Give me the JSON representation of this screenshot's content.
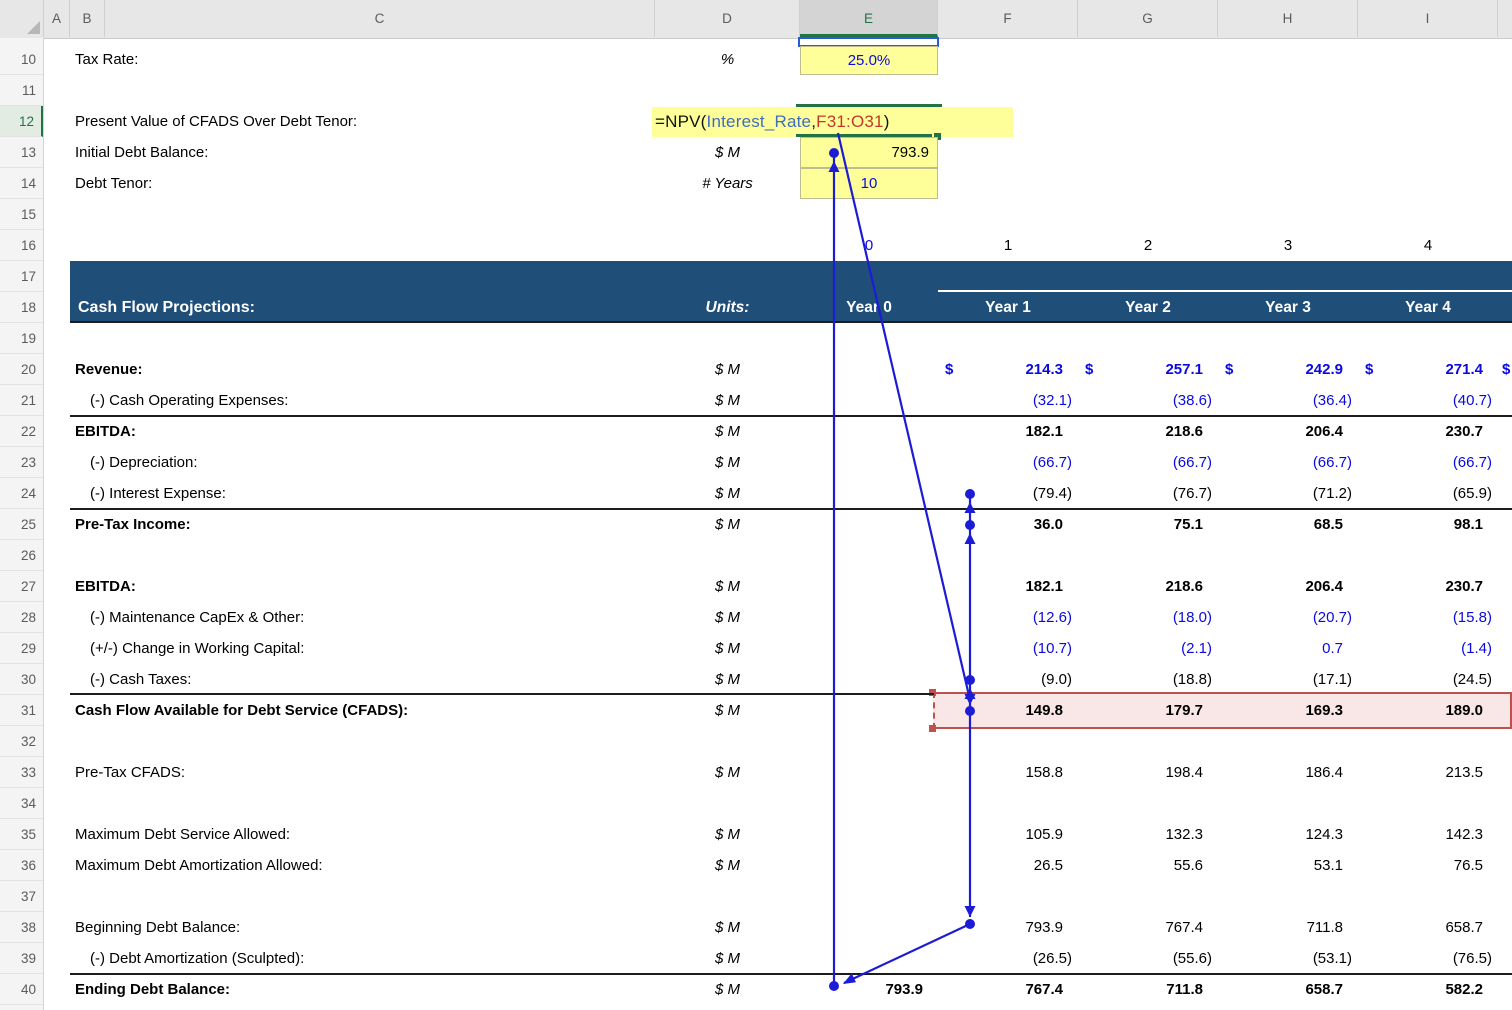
{
  "colors": {
    "band_blue": "#1F4E79",
    "input_blue": "#0A0ADF",
    "ref_blue": "#3F6DBF",
    "ref_red": "#C0392B",
    "trace_blue": "#1C1CD6",
    "marquee_red": "#C0504D",
    "marquee_fill": "#F9E7E7",
    "cell_yellow": "#FFFF99",
    "selection_green": "#217346"
  },
  "column_headers": [
    "A",
    "B",
    "C",
    "D",
    "E",
    "F",
    "G",
    "H",
    "I"
  ],
  "active_column": "E",
  "active_row": 12,
  "row_numbers": [
    "10",
    "11",
    "12",
    "13",
    "14",
    "15",
    "16",
    "17",
    "18",
    "19",
    "20",
    "21",
    "22",
    "23",
    "24",
    "25",
    "26",
    "27",
    "28",
    "29",
    "30",
    "31",
    "32",
    "33",
    "34",
    "35",
    "36",
    "37",
    "38",
    "39",
    "40"
  ],
  "dollar_prefix": "$",
  "top_section": {
    "rows": [
      {
        "row": 10,
        "label": "Tax Rate:",
        "unit": "%",
        "value": "25.0%",
        "value_style": "input-center"
      },
      {
        "row": 12,
        "label": "Present Value of CFADS Over Debt Tenor:",
        "formula": [
          {
            "t": "=NPV(",
            "c": "formula_black"
          },
          {
            "t": "Interest_Rate",
            "c": "ref_blue"
          },
          {
            "t": ",",
            "c": "formula_black"
          },
          {
            "t": "F31:O31",
            "c": "ref_red"
          },
          {
            "t": ")",
            "c": "formula_black"
          }
        ]
      },
      {
        "row": 13,
        "label": "Initial Debt Balance:",
        "unit": "$ M",
        "value": "793.9",
        "value_style": "calc-right"
      },
      {
        "row": 14,
        "label": "Debt Tenor:",
        "unit": "# Years",
        "value": "10",
        "value_style": "input-center"
      }
    ]
  },
  "period_row": {
    "row": 16,
    "values": [
      "0",
      "1",
      "2",
      "3",
      "4"
    ],
    "styles": [
      "blue",
      "black",
      "black",
      "black",
      "black"
    ]
  },
  "table_header": {
    "title": "Cash Flow Projections:",
    "units_label": "Units:",
    "years": [
      "Year 0",
      "Year 1",
      "Year 2",
      "Year 3",
      "Year 4"
    ]
  },
  "table_rows": [
    {
      "row": 20,
      "label": "Revenue:",
      "bold": true,
      "unit": "$ M",
      "color": "blue",
      "vbold": true,
      "dollar": true,
      "values": [
        "",
        "214.3",
        "257.1",
        "242.9",
        "271.4"
      ]
    },
    {
      "row": 21,
      "label": "(-) Cash Operating Expenses:",
      "indent": true,
      "unit": "$ M",
      "color": "blue",
      "values": [
        "",
        "(32.1)",
        "(38.6)",
        "(36.4)",
        "(40.7)"
      ]
    },
    {
      "row": 22,
      "label": "EBITDA:",
      "bold": true,
      "unit": "$ M",
      "color": "black",
      "vbold": true,
      "topline": true,
      "values": [
        "",
        "182.1",
        "218.6",
        "206.4",
        "230.7"
      ]
    },
    {
      "row": 23,
      "label": "(-) Depreciation:",
      "indent": true,
      "unit": "$ M",
      "color": "blue",
      "values": [
        "",
        "(66.7)",
        "(66.7)",
        "(66.7)",
        "(66.7)"
      ]
    },
    {
      "row": 24,
      "label": "(-) Interest Expense:",
      "indent": true,
      "unit": "$ M",
      "color": "black",
      "values": [
        "",
        "(79.4)",
        "(76.7)",
        "(71.2)",
        "(65.9)"
      ]
    },
    {
      "row": 25,
      "label": "Pre-Tax Income:",
      "bold": true,
      "unit": "$ M",
      "color": "black",
      "vbold": true,
      "topline": true,
      "values": [
        "",
        "36.0",
        "75.1",
        "68.5",
        "98.1"
      ]
    },
    {
      "row": 27,
      "label": "EBITDA:",
      "bold": true,
      "unit": "$ M",
      "color": "black",
      "vbold": true,
      "values": [
        "",
        "182.1",
        "218.6",
        "206.4",
        "230.7"
      ]
    },
    {
      "row": 28,
      "label": "(-) Maintenance CapEx & Other:",
      "indent": true,
      "unit": "$ M",
      "color": "blue",
      "values": [
        "",
        "(12.6)",
        "(18.0)",
        "(20.7)",
        "(15.8)"
      ]
    },
    {
      "row": 29,
      "label": "(+/-) Change in Working Capital:",
      "indent": true,
      "unit": "$ M",
      "color": "blue",
      "values": [
        "",
        "(10.7)",
        "(2.1)",
        "0.7",
        "(1.4)"
      ]
    },
    {
      "row": 30,
      "label": "(-) Cash Taxes:",
      "indent": true,
      "unit": "$ M",
      "color": "black",
      "values": [
        "",
        "(9.0)",
        "(18.8)",
        "(17.1)",
        "(24.5)"
      ]
    },
    {
      "row": 31,
      "label": "Cash Flow Available for Debt Service (CFADS):",
      "bold": true,
      "unit": "$ M",
      "color": "black",
      "vbold": true,
      "topline": true,
      "topline_short": true,
      "marquee": true,
      "values": [
        "",
        "149.8",
        "179.7",
        "169.3",
        "189.0"
      ]
    },
    {
      "row": 33,
      "label": "Pre-Tax CFADS:",
      "unit": "$ M",
      "color": "black",
      "values": [
        "",
        "158.8",
        "198.4",
        "186.4",
        "213.5"
      ]
    },
    {
      "row": 35,
      "label": "Maximum Debt Service Allowed:",
      "unit": "$ M",
      "color": "black",
      "values": [
        "",
        "105.9",
        "132.3",
        "124.3",
        "142.3"
      ]
    },
    {
      "row": 36,
      "label": "Maximum Debt Amortization Allowed:",
      "unit": "$ M",
      "color": "black",
      "values": [
        "",
        "26.5",
        "55.6",
        "53.1",
        "76.5"
      ]
    },
    {
      "row": 38,
      "label": "Beginning Debt Balance:",
      "unit": "$ M",
      "color": "black",
      "values": [
        "",
        "793.9",
        "767.4",
        "711.8",
        "658.7"
      ]
    },
    {
      "row": 39,
      "label": "(-) Debt Amortization (Sculpted):",
      "indent": true,
      "unit": "$ M",
      "color": "black",
      "values": [
        "",
        "(26.5)",
        "(55.6)",
        "(53.1)",
        "(76.5)"
      ]
    },
    {
      "row": 40,
      "label": "Ending Debt Balance:",
      "bold": true,
      "unit": "$ M",
      "color": "black",
      "vbold": true,
      "topline": true,
      "values": [
        "793.9",
        "767.4",
        "711.8",
        "658.7",
        "582.2"
      ]
    }
  ]
}
